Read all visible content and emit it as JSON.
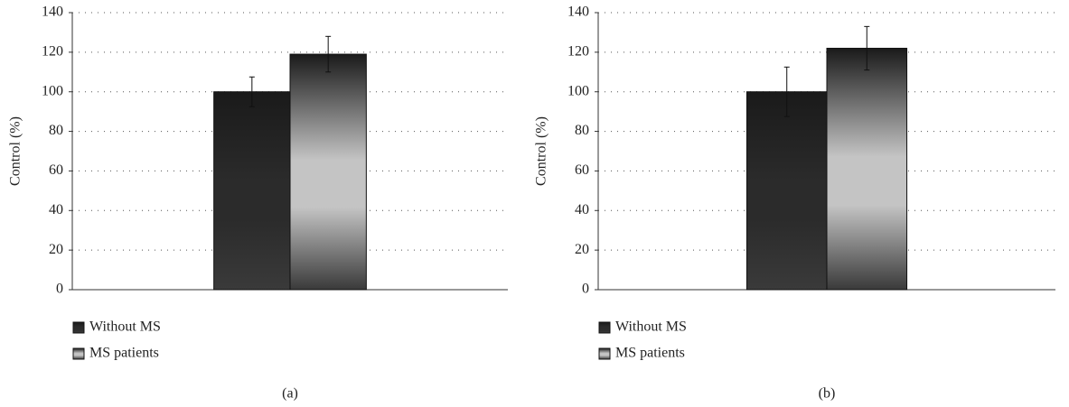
{
  "chart_data": [
    {
      "type": "bar",
      "ylabel": "Control (%)",
      "caption": "(a)",
      "categories": [
        null
      ],
      "series": [
        {
          "name": "Without MS",
          "color": "#2b2b2b",
          "values": [
            100
          ],
          "errors": [
            7.5
          ]
        },
        {
          "name": "MS patients",
          "color": "#c4c4c4",
          "values": [
            119
          ],
          "errors": [
            9
          ]
        }
      ],
      "ylim": [
        0,
        140
      ],
      "yticks": [
        0,
        20,
        40,
        60,
        80,
        100,
        120,
        140
      ],
      "grid": true
    },
    {
      "type": "bar",
      "ylabel": "Control (%)",
      "caption": "(b)",
      "categories": [
        null
      ],
      "series": [
        {
          "name": "Without MS",
          "color": "#2b2b2b",
          "values": [
            100
          ],
          "errors": [
            12.5
          ]
        },
        {
          "name": "MS patients",
          "color": "#c4c4c4",
          "values": [
            122
          ],
          "errors": [
            11
          ]
        }
      ],
      "ylim": [
        0,
        140
      ],
      "yticks": [
        0,
        20,
        40,
        60,
        80,
        100,
        120,
        140
      ],
      "grid": true
    }
  ]
}
